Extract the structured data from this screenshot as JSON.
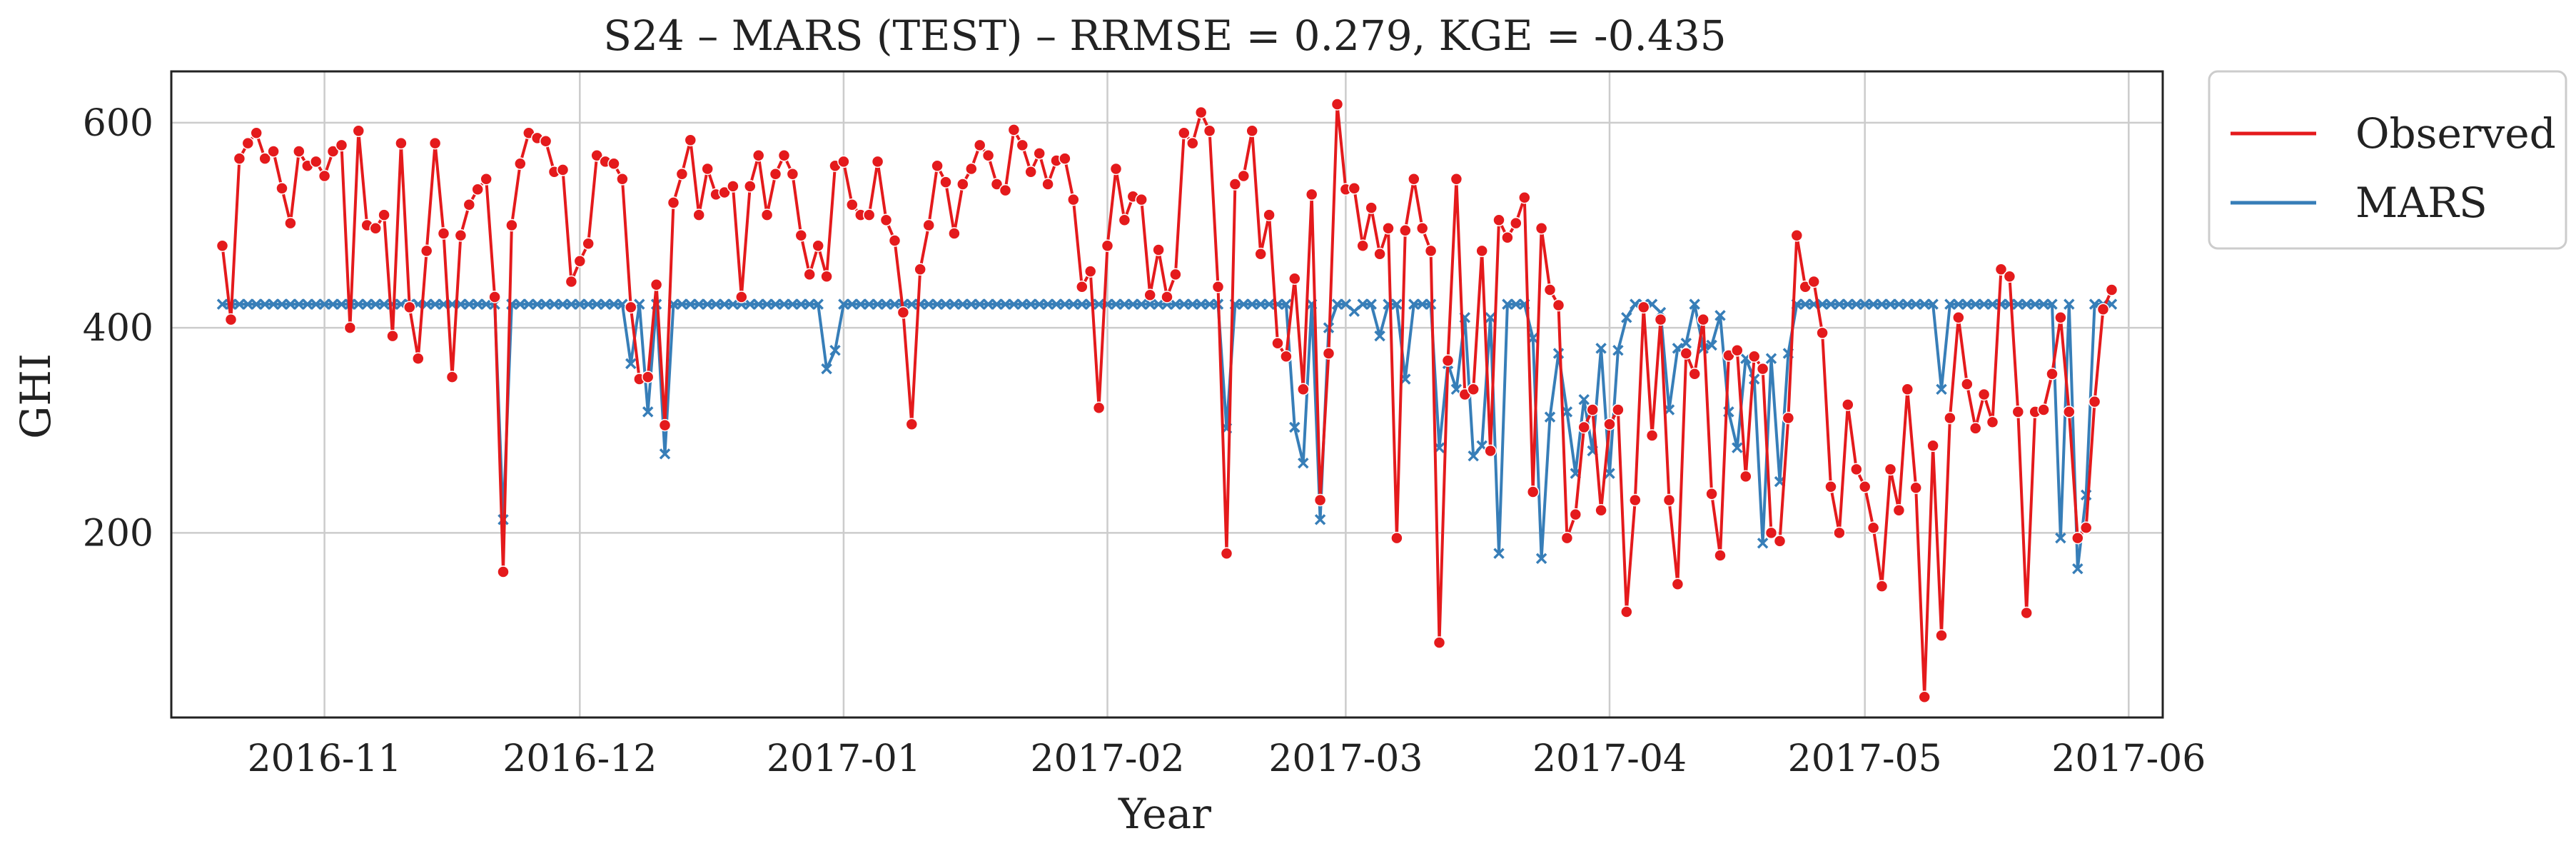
{
  "chart_data": {
    "type": "line",
    "title": "S24 – MARS (TEST) – RRMSE = 0.279, KGE = -0.435",
    "xlabel": "Year",
    "ylabel": "GHI",
    "x_start": "2016-10-20",
    "x_end": "2017-05-30",
    "xlim": [
      "2016-10-14",
      "2017-06-05"
    ],
    "ylim": [
      20,
      650
    ],
    "x_ticks": [
      {
        "date": "2016-11-01",
        "label": "2016-11"
      },
      {
        "date": "2016-12-01",
        "label": "2016-12"
      },
      {
        "date": "2017-01-01",
        "label": "2017-01"
      },
      {
        "date": "2017-02-01",
        "label": "2017-02"
      },
      {
        "date": "2017-03-01",
        "label": "2017-03"
      },
      {
        "date": "2017-04-01",
        "label": "2017-04"
      },
      {
        "date": "2017-05-01",
        "label": "2017-05"
      },
      {
        "date": "2017-06-01",
        "label": "2017-06"
      }
    ],
    "y_ticks": [
      200,
      400,
      600
    ],
    "grid": true,
    "legend_position": "outside-top-right",
    "series": [
      {
        "name": "Observed",
        "color": "#e41a1c",
        "marker": "circle",
        "values": [
          480,
          408,
          565,
          580,
          590,
          565,
          572,
          536,
          502,
          572,
          558,
          562,
          548,
          572,
          578,
          400,
          592,
          500,
          497,
          510,
          392,
          580,
          420,
          370,
          475,
          580,
          492,
          352,
          490,
          520,
          535,
          545,
          430,
          162,
          500,
          560,
          590,
          585,
          582,
          552,
          554,
          445,
          465,
          482,
          568,
          562,
          560,
          545,
          420,
          350,
          352,
          442,
          305,
          522,
          550,
          583,
          510,
          555,
          530,
          532,
          538,
          430,
          538,
          568,
          510,
          550,
          568,
          550,
          490,
          452,
          480,
          450,
          558,
          562,
          520,
          510,
          510,
          562,
          505,
          485,
          415,
          306,
          457,
          500,
          558,
          542,
          492,
          540,
          555,
          578,
          568,
          540,
          534,
          593,
          578,
          552,
          570,
          540,
          563,
          565,
          525,
          440,
          455,
          322,
          480,
          555,
          505,
          528,
          525,
          432,
          476,
          430,
          452,
          590,
          580,
          610,
          592,
          440,
          180,
          540,
          548,
          592,
          472,
          510,
          385,
          372,
          448,
          340,
          530,
          232,
          375,
          618,
          535,
          536,
          480,
          517,
          472,
          497,
          195,
          495,
          545,
          497,
          475,
          93,
          368,
          545,
          335,
          340,
          475,
          280,
          505,
          488,
          502,
          527,
          240,
          497,
          437,
          422,
          195,
          218,
          303,
          320,
          222,
          306,
          320,
          123,
          232,
          420,
          295,
          408,
          232,
          150,
          375,
          355,
          408,
          238,
          178,
          373,
          378,
          255,
          372,
          360,
          200,
          192,
          312,
          490,
          440,
          445,
          395,
          245,
          200,
          325,
          262,
          245,
          205,
          148,
          262,
          222,
          340,
          244,
          40,
          285,
          100,
          312,
          410,
          345,
          302,
          335,
          308,
          457,
          450,
          318,
          122,
          318,
          320,
          355,
          410,
          318,
          195,
          205,
          328,
          418,
          437
        ]
      },
      {
        "name": "MARS",
        "color": "#377eb8",
        "marker": "x",
        "values": [
          423,
          423,
          423,
          423,
          423,
          423,
          423,
          423,
          423,
          423,
          423,
          423,
          423,
          423,
          423,
          423,
          423,
          423,
          423,
          423,
          423,
          423,
          423,
          423,
          423,
          423,
          423,
          423,
          423,
          423,
          423,
          423,
          423,
          213,
          423,
          423,
          423,
          423,
          423,
          423,
          423,
          423,
          423,
          423,
          423,
          423,
          423,
          423,
          365,
          423,
          318,
          423,
          277,
          423,
          423,
          423,
          423,
          423,
          423,
          423,
          423,
          423,
          423,
          423,
          423,
          423,
          423,
          423,
          423,
          423,
          423,
          360,
          378,
          423,
          423,
          423,
          423,
          423,
          423,
          423,
          423,
          423,
          423,
          423,
          423,
          423,
          423,
          423,
          423,
          423,
          423,
          423,
          423,
          423,
          423,
          423,
          423,
          423,
          423,
          423,
          423,
          423,
          423,
          423,
          423,
          423,
          423,
          423,
          423,
          423,
          423,
          423,
          423,
          423,
          423,
          423,
          423,
          423,
          302,
          423,
          423,
          423,
          423,
          423,
          423,
          423,
          303,
          268,
          423,
          213,
          400,
          423,
          423,
          416,
          423,
          423,
          392,
          423,
          423,
          350,
          423,
          423,
          423,
          283,
          365,
          340,
          410,
          275,
          285,
          410,
          180,
          423,
          423,
          423,
          390,
          175,
          313,
          375,
          318,
          258,
          330,
          280,
          380,
          258,
          378,
          410,
          423,
          423,
          423,
          415,
          320,
          380,
          385,
          423,
          380,
          383,
          412,
          318,
          283,
          370,
          350,
          190,
          370,
          250,
          375,
          423,
          423,
          423,
          423,
          423,
          423,
          423,
          423,
          423,
          423,
          423,
          423,
          423,
          423,
          423,
          423,
          423,
          340,
          423,
          423,
          423,
          423,
          423,
          423,
          423,
          423,
          423,
          423,
          423,
          423,
          423,
          195,
          423,
          165,
          237,
          423,
          423,
          423
        ]
      }
    ]
  }
}
